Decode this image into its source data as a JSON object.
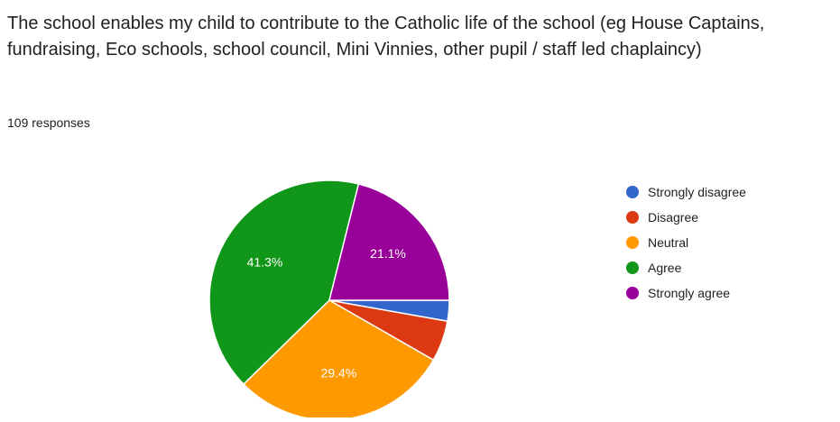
{
  "question": {
    "title": "The school enables my child to contribute to the Catholic life of the school (eg House Captains, fundraising, Eco schools, school council, Mini Vinnies, other pupil / staff led chaplaincy)",
    "responses": "109 responses"
  },
  "chart_data": {
    "type": "pie",
    "total": 109,
    "legend_position": "right",
    "slices": [
      {
        "label": "Strongly disagree",
        "percent": 2.8,
        "color": "#3366cc",
        "data_label": ""
      },
      {
        "label": "Disagree",
        "percent": 5.5,
        "color": "#dc3912",
        "data_label": ""
      },
      {
        "label": "Neutral",
        "percent": 29.4,
        "color": "#ff9900",
        "data_label": "29.4%"
      },
      {
        "label": "Agree",
        "percent": 41.3,
        "color": "#109618",
        "data_label": "41.3%"
      },
      {
        "label": "Strongly agree",
        "percent": 21.1,
        "color": "#990099",
        "data_label": "21.1%"
      }
    ]
  }
}
